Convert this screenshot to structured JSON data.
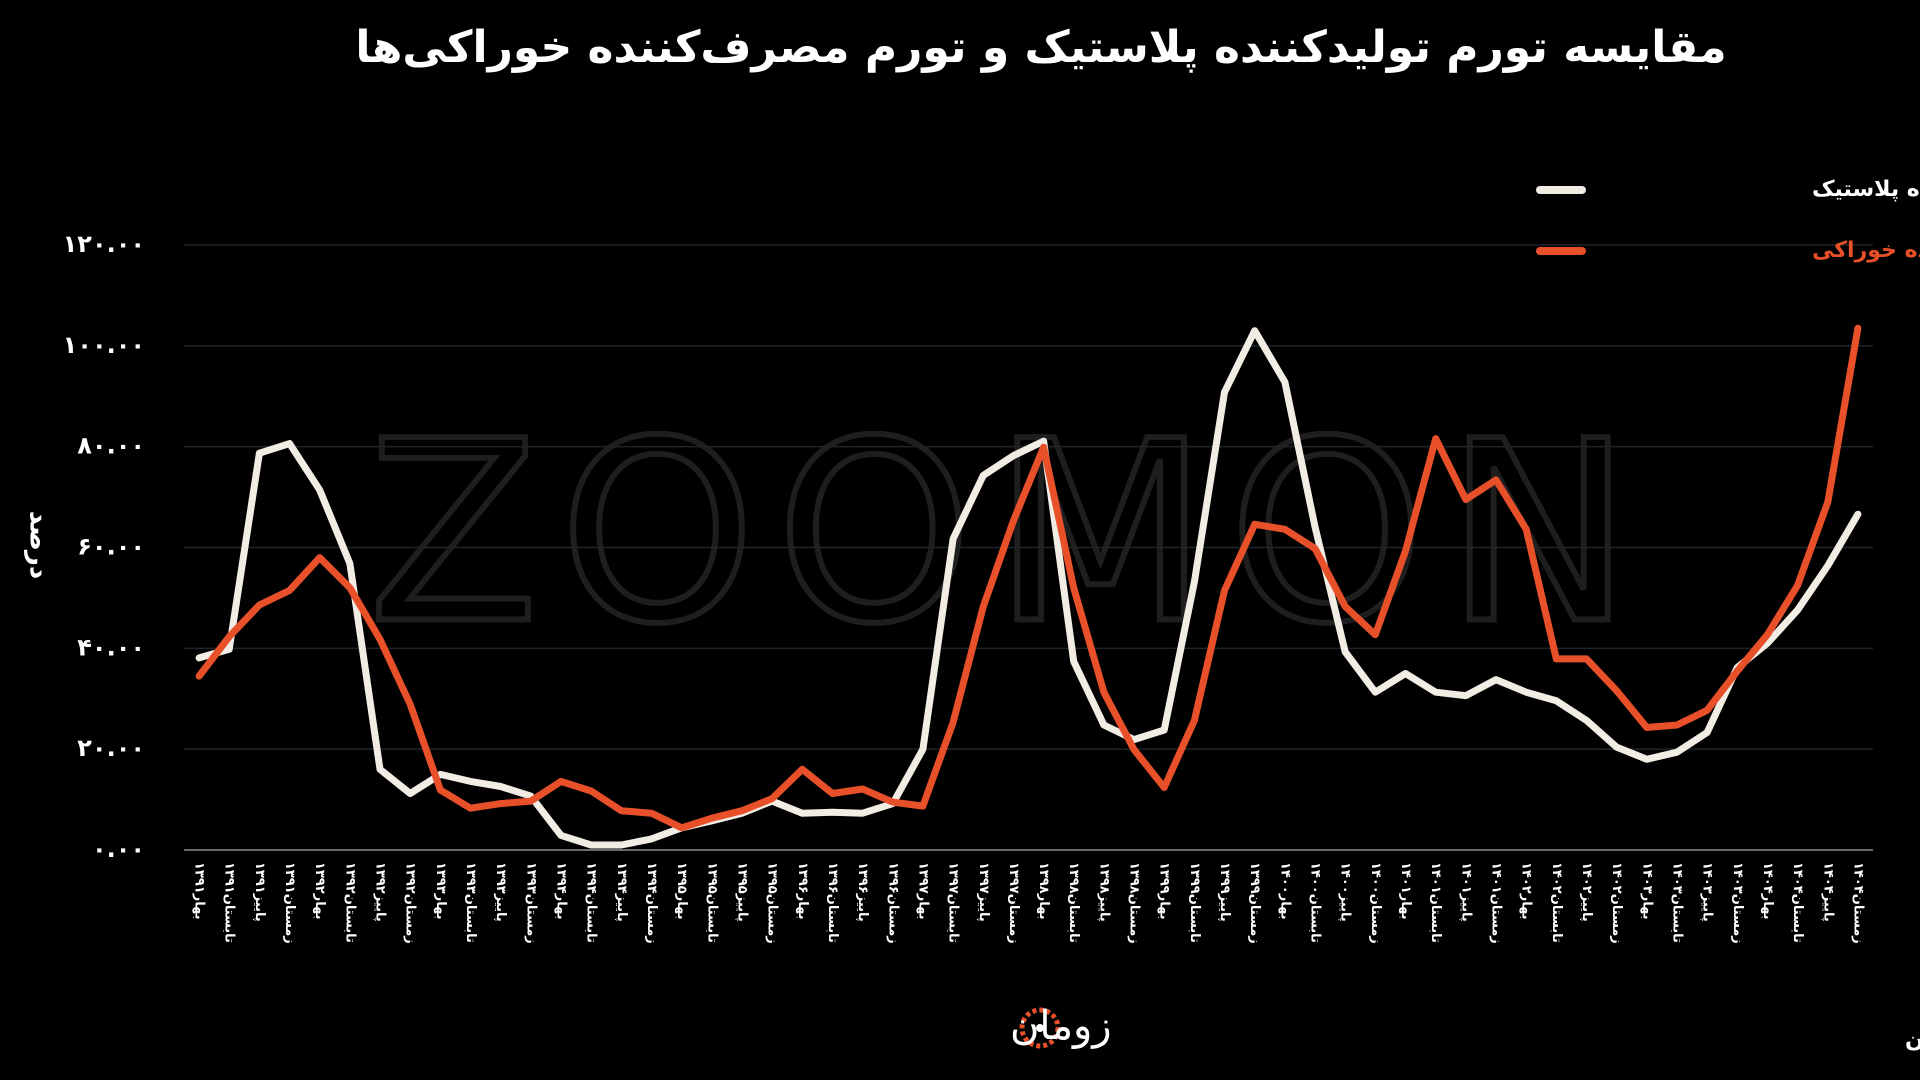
{
  "chart_data": {
    "type": "line",
    "title": "مقایسه تورم تولیدکننده پلاستیک و تورم مصرف‌کننده خوراکی‌ها",
    "y_label": "درصد",
    "watermark": "ZOOMON",
    "logo": "زومان",
    "source": "منبع: مرکز آمار ایران",
    "categories": [
      "بهار۱۳۹۱",
      "تابستان۱۳۹۱",
      "پاییز۱۳۹۱",
      "زمستان۱۳۹۱",
      "بهار۱۳۹۲",
      "تابستان۱۳۹۲",
      "پاییز۱۳۹۲",
      "زمستان۱۳۹۲",
      "بهار۱۳۹۳",
      "تابستان۱۳۹۳",
      "پاییز۱۳۹۳",
      "زمستان۱۳۹۳",
      "بهار۱۳۹۴",
      "تابستان۱۳۹۴",
      "پاییز۱۳۹۴",
      "زمستان۱۳۹۴",
      "بهار۱۳۹۵",
      "تابستان۱۳۹۵",
      "پاییز۱۳۹۵",
      "زمستان۱۳۹۵",
      "بهار۱۳۹۶",
      "تابستان۱۳۹۶",
      "پاییز۱۳۹۶",
      "زمستان۱۳۹۶",
      "بهار۱۳۹۷",
      "تابستان۱۳۹۷",
      "پاییز۱۳۹۷",
      "زمستان۱۳۹۷",
      "بهار۱۳۹۸",
      "تابستان۱۳۹۸",
      "پاییز۱۳۹۸",
      "زمستان۱۳۹۸",
      "بهار۱۳۹۹",
      "تابستان۱۳۹۹",
      "پاییز۱۳۹۹",
      "زمستان۱۳۹۹",
      "بهار۱۴۰۰",
      "تابستان۱۴۰۰",
      "پاییز۱۴۰۰",
      "زمستان۱۴۰۰",
      "بهار۱۴۰۱",
      "تابستان۱۴۰۱",
      "پاییز۱۴۰۱",
      "زمستان۱۴۰۱",
      "بهار۱۴۰۲",
      "تابستان۱۴۰۲",
      "پاییز۱۴۰۲",
      "زمستان۱۴۰۲",
      "بهار۱۴۰۳",
      "تابستان۱۴۰۳",
      "پاییز۱۴۰۳",
      "زمستان۱۴۰۳",
      "بهار۱۴۰۴",
      "تابستان۱۴۰۴",
      "پاییز۱۴۰۴",
      "زمستان۱۴۰۴"
    ],
    "series": [
      {
        "name": "تولید کننده پلاستیک",
        "color": "#f1ece4",
        "values": [
          38.1,
          39.8,
          78.7,
          80.6,
          71.4,
          56.8,
          16,
          11.2,
          15,
          13.6,
          12.6,
          10.7,
          2.9,
          1,
          1,
          2.2,
          4.4,
          5.8,
          7.3,
          9.7,
          7.3,
          7.5,
          7.3,
          9.2,
          20,
          61.7,
          74.3,
          78.2,
          81.1,
          37.4,
          24.8,
          21.9,
          23.8,
          53.2,
          90.8,
          103,
          92.8,
          64.1,
          39.3,
          31.3,
          35,
          31.3,
          30.6,
          33.8,
          31.3,
          29.6,
          25.7,
          20.4,
          18,
          19.4,
          23.3,
          36.2,
          41,
          47.6,
          56.4,
          66.6
        ]
      },
      {
        "name": "تورم مصرف کننده خوراکی",
        "color": "#e8502a",
        "values": [
          34.5,
          42.3,
          48.6,
          51.5,
          58,
          52,
          41.8,
          28.9,
          11.9,
          8.3,
          9.2,
          9.7,
          13.6,
          11.7,
          7.8,
          7.3,
          4.4,
          6.3,
          7.8,
          10.2,
          16,
          11.2,
          12.1,
          9.5,
          8.7,
          25.3,
          48.3,
          65.3,
          79.9,
          52,
          31.3,
          19.9,
          12.4,
          25.7,
          51.5,
          64.6,
          63.6,
          59.8,
          48.3,
          42.7,
          59.3,
          81.6,
          69.5,
          73.4,
          63.6,
          37.9,
          37.9,
          31.6,
          24.3,
          24.8,
          27.7,
          35.5,
          42.7,
          52.5,
          69,
          103.5
        ]
      }
    ],
    "ylim": [
      0,
      120
    ],
    "yticks": [
      {
        "value": 0,
        "label": "۰.۰۰"
      },
      {
        "value": 20,
        "label": "۲۰.۰۰"
      },
      {
        "value": 40,
        "label": "۴۰.۰۰"
      },
      {
        "value": 60,
        "label": "۶۰.۰۰"
      },
      {
        "value": 80,
        "label": "۸۰.۰۰"
      },
      {
        "value": 100,
        "label": "۱۰۰.۰۰"
      },
      {
        "value": 120,
        "label": "۱۲۰.۰۰"
      }
    ],
    "grid": true
  }
}
